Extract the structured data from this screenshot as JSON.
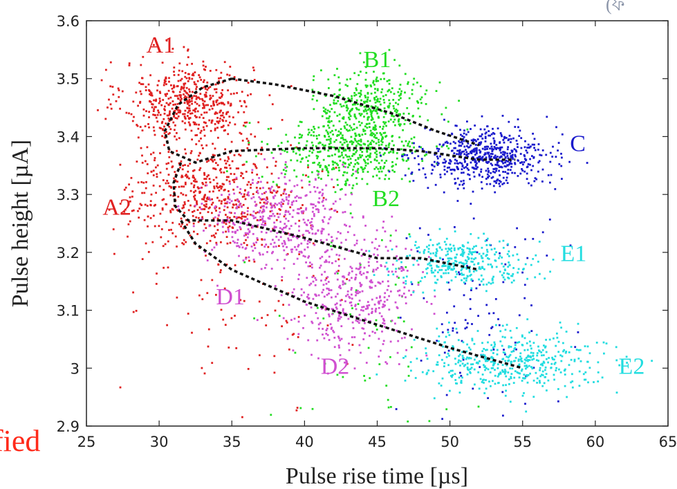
{
  "chart_data": {
    "type": "scatter",
    "xlabel": "Pulse rise time [µs]",
    "ylabel": "Pulse height [µA]",
    "xlim": [
      25,
      65
    ],
    "ylim": [
      2.9,
      3.6
    ],
    "xticks": [
      25,
      30,
      35,
      40,
      45,
      50,
      55,
      60,
      65
    ],
    "yticks": [
      2.9,
      3.0,
      3.1,
      3.2,
      3.3,
      3.4,
      3.5,
      3.6
    ],
    "xtick_labels": [
      "25",
      "30",
      "35",
      "40",
      "45",
      "50",
      "55",
      "60",
      "65"
    ],
    "ytick_labels": [
      "2.9",
      "3",
      "3.1",
      "3.2",
      "3.3",
      "3.4",
      "3.5",
      "3.6"
    ],
    "grid": false,
    "series": [
      {
        "name": "A1",
        "color": "#e02020",
        "label_at": [
          30.1,
          3.545
        ],
        "clusters": [
          {
            "cx": 32.0,
            "cy": 3.46,
            "sx": 2.2,
            "sy": 0.035,
            "n": 520
          }
        ]
      },
      {
        "name": "A2",
        "color": "#e02020",
        "label_at": [
          27.1,
          3.265
        ],
        "clusters": [
          {
            "cx": 33.5,
            "cy": 3.3,
            "sx": 3.0,
            "sy": 0.045,
            "n": 560
          },
          {
            "cx": 36.0,
            "cy": 3.12,
            "sx": 3.5,
            "sy": 0.09,
            "n": 90
          }
        ]
      },
      {
        "name": "B1",
        "color": "#22dd22",
        "label_at": [
          45.0,
          3.52
        ],
        "clusters": [
          {
            "cx": 44.5,
            "cy": 3.45,
            "sx": 2.0,
            "sy": 0.03,
            "n": 380
          }
        ]
      },
      {
        "name": "B2",
        "color": "#22dd22",
        "label_at": [
          45.6,
          3.28
        ],
        "clusters": [
          {
            "cx": 43.0,
            "cy": 3.37,
            "sx": 2.6,
            "sy": 0.03,
            "n": 420
          },
          {
            "cx": 44.0,
            "cy": 3.05,
            "sx": 3.0,
            "sy": 0.1,
            "n": 60
          }
        ]
      },
      {
        "name": "C",
        "color": "#1a1acc",
        "label_at": [
          58.8,
          3.375
        ],
        "clusters": [
          {
            "cx": 52.5,
            "cy": 3.365,
            "sx": 2.2,
            "sy": 0.025,
            "n": 560
          },
          {
            "cx": 52.0,
            "cy": 3.12,
            "sx": 2.6,
            "sy": 0.12,
            "n": 110
          }
        ]
      },
      {
        "name": "D1",
        "color": "#d050d0",
        "label_at": [
          34.9,
          3.11
        ],
        "clusters": [
          {
            "cx": 38.0,
            "cy": 3.26,
            "sx": 2.4,
            "sy": 0.04,
            "n": 430
          }
        ]
      },
      {
        "name": "D2",
        "color": "#d050d0",
        "label_at": [
          42.1,
          2.99
        ],
        "clusters": [
          {
            "cx": 43.5,
            "cy": 3.13,
            "sx": 2.3,
            "sy": 0.05,
            "n": 430
          }
        ]
      },
      {
        "name": "E1",
        "color": "#22dde0",
        "label_at": [
          58.5,
          3.185
        ],
        "clusters": [
          {
            "cx": 51.0,
            "cy": 3.185,
            "sx": 2.3,
            "sy": 0.02,
            "n": 330
          }
        ]
      },
      {
        "name": "E2",
        "color": "#22dde0",
        "label_at": [
          62.5,
          2.99
        ],
        "clusters": [
          {
            "cx": 54.0,
            "cy": 3.01,
            "sx": 3.2,
            "sy": 0.025,
            "n": 460
          }
        ]
      }
    ],
    "trend_lines": [
      {
        "style": "dashed",
        "color": "#111111",
        "points": [
          [
            35,
            3.5
          ],
          [
            33,
            3.485
          ],
          [
            31.3,
            3.455
          ],
          [
            30.4,
            3.41
          ],
          [
            30.7,
            3.375
          ],
          [
            32.5,
            3.355
          ],
          [
            35,
            3.375
          ],
          [
            40,
            3.38
          ],
          [
            45,
            3.38
          ],
          [
            48,
            3.375
          ],
          [
            52,
            3.36
          ],
          [
            54.5,
            3.36
          ]
        ]
      },
      {
        "style": "dashed",
        "color": "#111111",
        "points": [
          [
            35,
            3.5
          ],
          [
            38,
            3.49
          ],
          [
            42,
            3.47
          ],
          [
            46,
            3.44
          ],
          [
            49,
            3.41
          ],
          [
            52,
            3.385
          ]
        ]
      },
      {
        "style": "dashed",
        "color": "#111111",
        "points": [
          [
            31.5,
            3.355
          ],
          [
            31.0,
            3.32
          ],
          [
            31.1,
            3.28
          ],
          [
            32,
            3.255
          ],
          [
            35,
            3.255
          ],
          [
            40,
            3.225
          ],
          [
            45,
            3.19
          ],
          [
            48,
            3.19
          ],
          [
            52,
            3.17
          ]
        ]
      },
      {
        "style": "dashed",
        "color": "#111111",
        "points": [
          [
            31.5,
            3.255
          ],
          [
            32.5,
            3.215
          ],
          [
            35,
            3.17
          ],
          [
            40,
            3.115
          ],
          [
            45,
            3.075
          ],
          [
            50,
            3.035
          ],
          [
            55,
            3.0
          ]
        ]
      }
    ]
  },
  "overlay": {
    "corner_fragment": "fied",
    "corner_mark": "(ফ"
  }
}
